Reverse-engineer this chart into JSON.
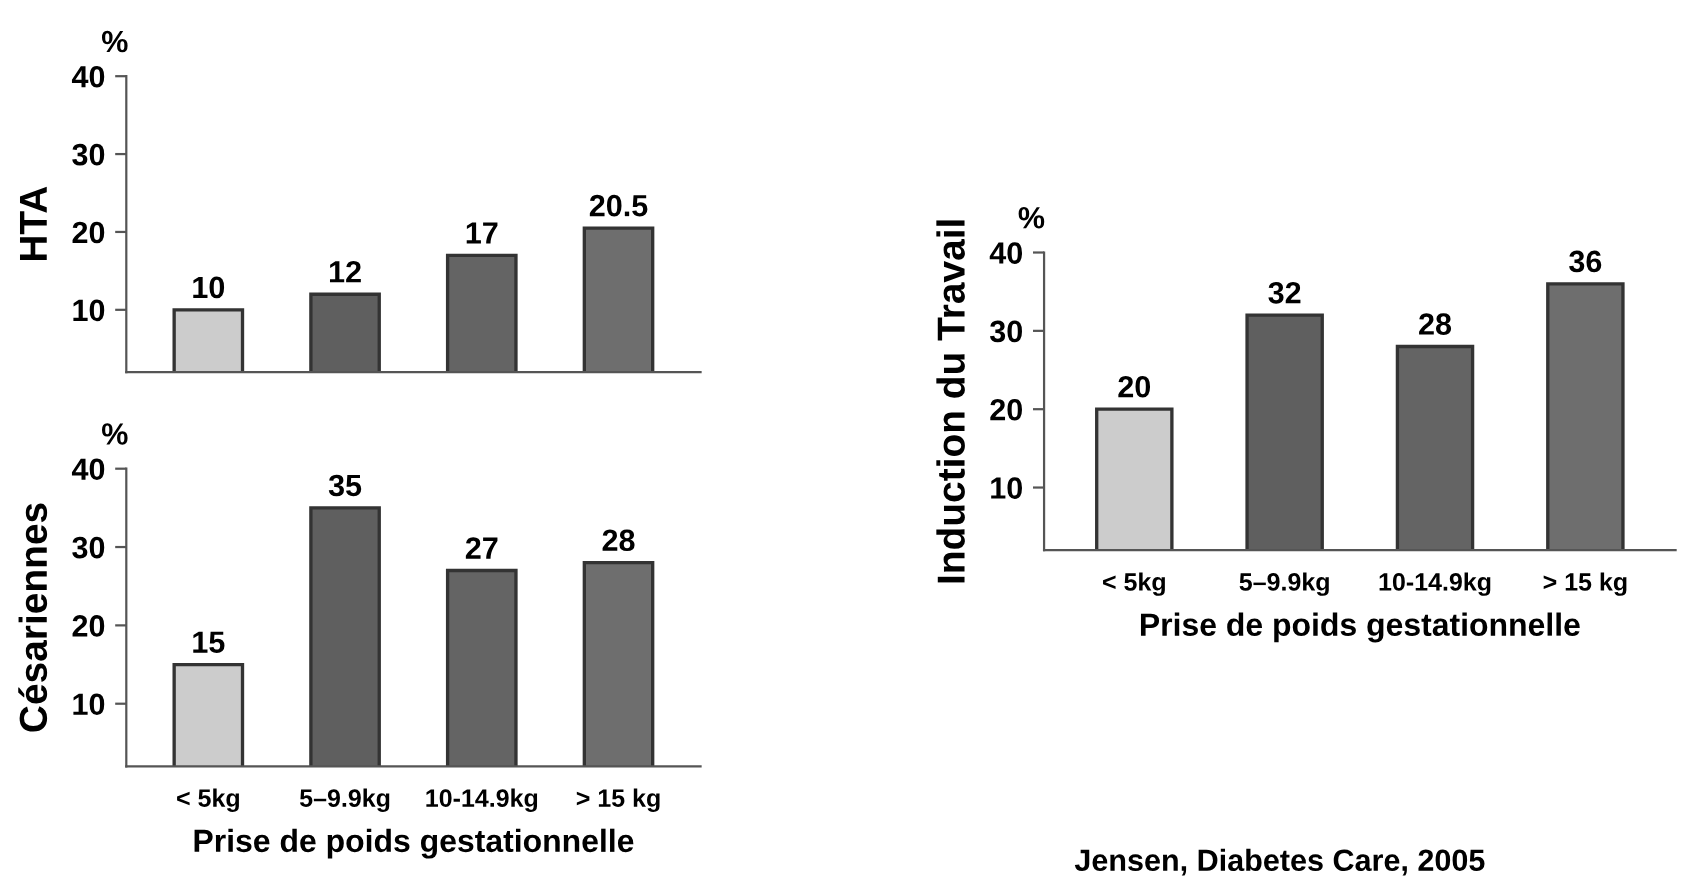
{
  "chart_data": [
    {
      "type": "bar",
      "ylabel": "HTA",
      "annotations": [
        "%"
      ],
      "categories": [
        null,
        null,
        null,
        null
      ],
      "values": [
        10,
        12,
        17,
        20.5
      ],
      "colors": [
        "#cccccc",
        "#5f5f5f",
        "#646464",
        "#6e6e6e"
      ],
      "ylim": [
        2,
        40
      ],
      "yticks": [
        10,
        20,
        30,
        40
      ],
      "data_labels": true,
      "tick_labels": "y",
      "grid": false,
      "legend": false
    },
    {
      "type": "bar",
      "ylabel": "Césariennes",
      "xlabel": "Prise de poids gestationnelle",
      "annotations": [
        "%"
      ],
      "categories": [
        "< 5kg",
        "5–9.9kg",
        "10-14.9kg",
        "> 15 kg"
      ],
      "values": [
        15,
        35,
        27,
        28
      ],
      "colors": [
        "#cccccc",
        "#5f5f5f",
        "#646464",
        "#6e6e6e"
      ],
      "ylim": [
        2,
        40
      ],
      "yticks": [
        10,
        20,
        30,
        40
      ],
      "data_labels": true,
      "grid": false,
      "legend": false
    },
    {
      "type": "bar",
      "ylabel": "Induction du Travail",
      "xlabel": "Prise de poids gestationnelle",
      "annotations": [
        "%",
        "Jensen, Diabetes Care, 2005"
      ],
      "categories": [
        "< 5kg",
        "5–9.9kg",
        "10-14.9kg",
        "> 15 kg"
      ],
      "values": [
        20,
        32,
        28,
        36
      ],
      "colors": [
        "#cccccc",
        "#5f5f5f",
        "#646464",
        "#6e6e6e"
      ],
      "ylim": [
        2,
        40
      ],
      "yticks": [
        10,
        20,
        30,
        40
      ],
      "data_labels": true,
      "grid": false,
      "legend": false
    }
  ]
}
